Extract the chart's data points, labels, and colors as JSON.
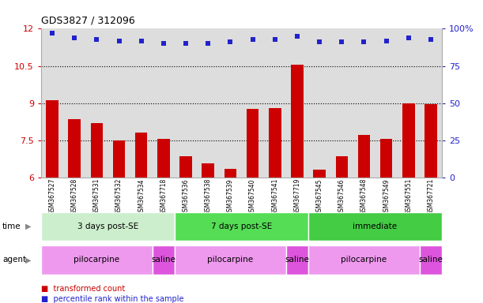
{
  "title": "GDS3827 / 312096",
  "samples": [
    "GSM367527",
    "GSM367528",
    "GSM367531",
    "GSM367532",
    "GSM367534",
    "GSM367718",
    "GSM367536",
    "GSM367538",
    "GSM367539",
    "GSM367540",
    "GSM367541",
    "GSM367719",
    "GSM367545",
    "GSM367546",
    "GSM367548",
    "GSM367549",
    "GSM367551",
    "GSM367721"
  ],
  "bar_values": [
    9.1,
    8.35,
    8.2,
    7.5,
    7.8,
    7.55,
    6.85,
    6.55,
    6.35,
    8.75,
    8.8,
    10.55,
    6.3,
    6.85,
    7.7,
    7.55,
    9.0,
    8.95
  ],
  "dot_values": [
    97,
    94,
    93,
    92,
    92,
    90,
    90,
    90,
    91,
    93,
    93,
    95,
    91,
    91,
    91,
    92,
    94,
    93
  ],
  "bar_color": "#cc0000",
  "dot_color": "#2222cc",
  "ylim_left": [
    6,
    12
  ],
  "ylim_right": [
    0,
    100
  ],
  "yticks_left": [
    6,
    7.5,
    9,
    10.5,
    12
  ],
  "yticks_right": [
    0,
    25,
    50,
    75,
    100
  ],
  "ytick_labels_right": [
    "0",
    "25",
    "50",
    "75",
    "100%"
  ],
  "hlines": [
    7.5,
    9.0,
    10.5
  ],
  "time_groups": [
    {
      "label": "3 days post-SE",
      "start": 0,
      "end": 5,
      "color": "#cceecc"
    },
    {
      "label": "7 days post-SE",
      "start": 6,
      "end": 11,
      "color": "#55dd55"
    },
    {
      "label": "immediate",
      "start": 12,
      "end": 17,
      "color": "#44cc44"
    }
  ],
  "agent_groups": [
    {
      "label": "pilocarpine",
      "start": 0,
      "end": 4,
      "color": "#ee99ee"
    },
    {
      "label": "saline",
      "start": 5,
      "end": 5,
      "color": "#dd55dd"
    },
    {
      "label": "pilocarpine",
      "start": 6,
      "end": 10,
      "color": "#ee99ee"
    },
    {
      "label": "saline",
      "start": 11,
      "end": 11,
      "color": "#dd55dd"
    },
    {
      "label": "pilocarpine",
      "start": 12,
      "end": 16,
      "color": "#ee99ee"
    },
    {
      "label": "saline",
      "start": 17,
      "end": 17,
      "color": "#dd55dd"
    }
  ],
  "legend_items": [
    {
      "label": "transformed count",
      "color": "#cc0000"
    },
    {
      "label": "percentile rank within the sample",
      "color": "#2222cc"
    }
  ],
  "tick_color_left": "#cc0000",
  "tick_color_right": "#2222cc",
  "bar_width": 0.55,
  "bar_bottom": 6.0,
  "col_bg": "#dddddd"
}
